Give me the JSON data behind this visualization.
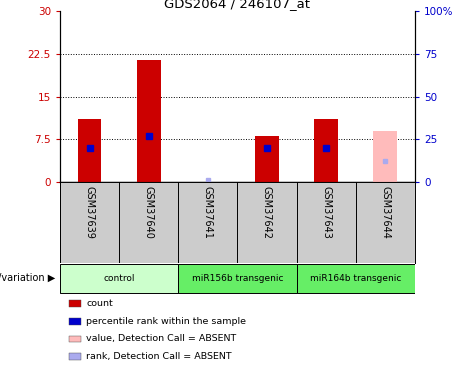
{
  "title": "GDS2064 / 246107_at",
  "samples": [
    "GSM37639",
    "GSM37640",
    "GSM37641",
    "GSM37642",
    "GSM37643",
    "GSM37644"
  ],
  "absent": [
    false,
    false,
    true,
    false,
    false,
    true
  ],
  "count_values": [
    11.0,
    21.5,
    0.0,
    8.0,
    11.0,
    0.0
  ],
  "count_absent_values": [
    0.0,
    0.0,
    0.0,
    0.0,
    0.0,
    9.0
  ],
  "percentile_values": [
    20.0,
    27.0,
    0.0,
    20.0,
    20.0,
    0.0
  ],
  "percentile_absent_values": [
    0.0,
    0.0,
    1.0,
    0.0,
    0.0,
    12.0
  ],
  "ylim_left": [
    0,
    30
  ],
  "ylim_right": [
    0,
    100
  ],
  "yticks_left": [
    0,
    7.5,
    15,
    22.5,
    30
  ],
  "yticks_right": [
    0,
    25,
    50,
    75,
    100
  ],
  "ytick_labels_left": [
    "0",
    "7.5",
    "15",
    "22.5",
    "30"
  ],
  "ytick_labels_right": [
    "0",
    "25",
    "50",
    "75",
    "100%"
  ],
  "hlines": [
    7.5,
    15,
    22.5
  ],
  "bar_color_present": "#cc0000",
  "bar_color_absent": "#ffbbbb",
  "dot_color_present": "#0000cc",
  "dot_color_absent": "#aaaaee",
  "bar_width": 0.4,
  "sample_box_color": "#cccccc",
  "group_colors": [
    "#ccffcc",
    "#66ee66",
    "#66ee66"
  ],
  "group_labels": [
    "control",
    "miR156b transgenic",
    "miR164b transgenic"
  ],
  "group_ranges": [
    [
      0,
      1
    ],
    [
      2,
      3
    ],
    [
      4,
      5
    ]
  ],
  "legend_items": [
    {
      "color": "#cc0000",
      "label": "count"
    },
    {
      "color": "#0000cc",
      "label": "percentile rank within the sample"
    },
    {
      "color": "#ffbbbb",
      "label": "value, Detection Call = ABSENT"
    },
    {
      "color": "#aaaaee",
      "label": "rank, Detection Call = ABSENT"
    }
  ],
  "group_label": "genotype/variation",
  "left_axis_color": "#cc0000",
  "right_axis_color": "#0000cc",
  "plot_bg": "#ffffff",
  "grid_color": "#000000"
}
